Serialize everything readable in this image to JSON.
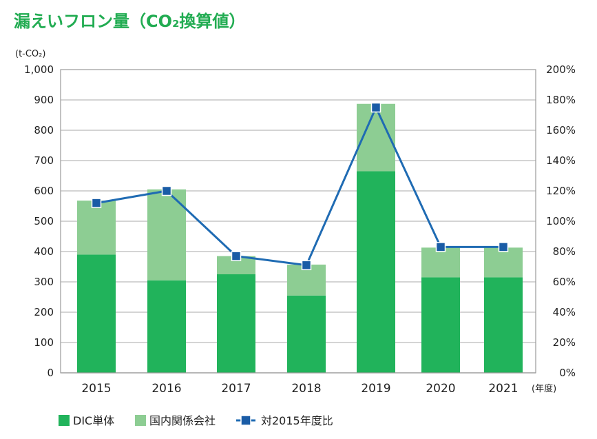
{
  "chart_data": {
    "type": "bar",
    "title": "漏えいフロン量（CO₂換算値）",
    "ylabel": "(t-CO₂)",
    "xlabel": "(年度)",
    "categories": [
      "2015",
      "2016",
      "2017",
      "2018",
      "2019",
      "2020",
      "2021"
    ],
    "series": [
      {
        "name": "DIC単体",
        "type": "bar",
        "values": [
          390,
          305,
          325,
          255,
          665,
          315,
          315
        ]
      },
      {
        "name": "国内関係会社",
        "type": "bar",
        "values": [
          178,
          300,
          60,
          102,
          222,
          98,
          98
        ]
      },
      {
        "name": "対2015年度比",
        "type": "line",
        "values": [
          112,
          120,
          77,
          71,
          175,
          83,
          83
        ]
      }
    ],
    "ylim": [
      0,
      1000
    ],
    "y2lim": [
      0,
      200
    ],
    "y_ticks": [
      "0",
      "100",
      "200",
      "300",
      "400",
      "500",
      "600",
      "700",
      "800",
      "900",
      "1,000"
    ],
    "y_tick_values": [
      0,
      100,
      200,
      300,
      400,
      500,
      600,
      700,
      800,
      900,
      1000
    ],
    "y2_ticks": [
      "0%",
      "20%",
      "40%",
      "60%",
      "80%",
      "100%",
      "120%",
      "140%",
      "160%",
      "180%",
      "200%"
    ],
    "y2_tick_values": [
      0,
      20,
      40,
      60,
      80,
      100,
      120,
      140,
      160,
      180,
      200
    ],
    "grid": true,
    "legend": "bottom-left",
    "colors": {
      "title": "#22AC52",
      "dic": "#21B35B",
      "affiliates": "#8DCD93",
      "ratio_line": "#1F6BB3",
      "ratio_marker": "#1A5CA6"
    }
  }
}
